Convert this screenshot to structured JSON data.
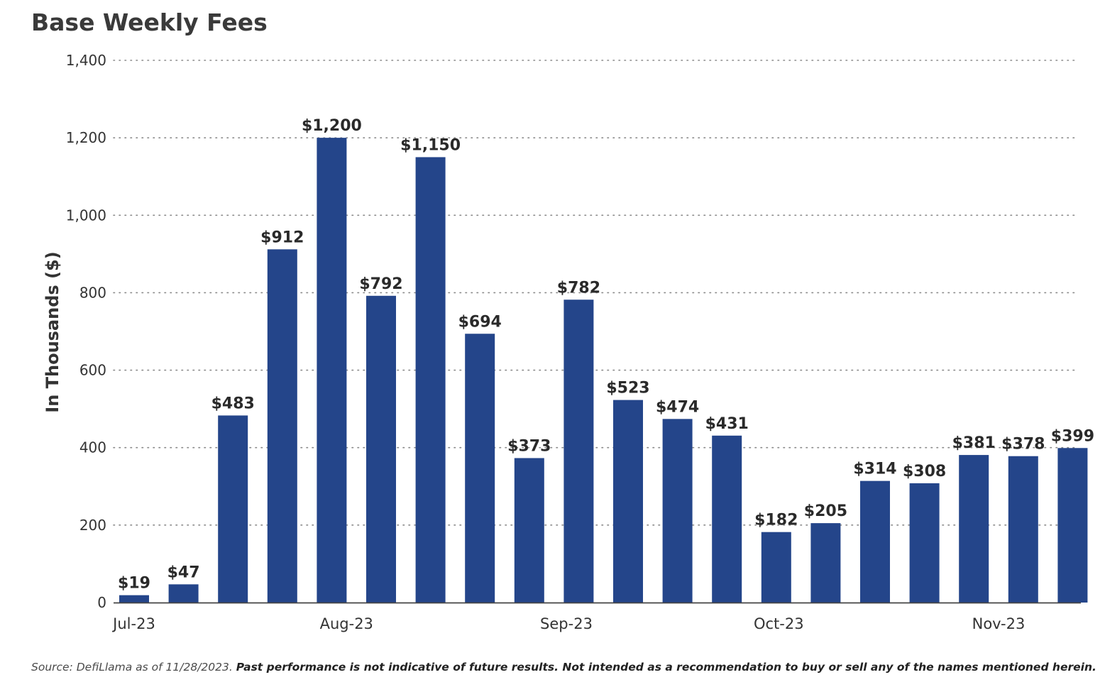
{
  "title": "Base Weekly Fees",
  "footer": {
    "source": "Source: DefiLlama as of 11/28/2023.",
    "disclaimer": "Past performance is not indicative of future results. Not intended as a recommendation to buy or sell any of the names mentioned herein."
  },
  "colors": {
    "bar": "#24458a",
    "grid": "#8a8a8a",
    "axis": "#444444",
    "text": "#333333"
  },
  "chart_data": {
    "type": "bar",
    "title": "Base Weekly Fees",
    "xlabel": "",
    "ylabel": "In Thousands ($)",
    "ylim": [
      0,
      1400
    ],
    "yticks": [
      0,
      200,
      400,
      600,
      800,
      1000,
      1200,
      1400
    ],
    "ytick_labels": [
      "0",
      "200",
      "400",
      "600",
      "800",
      "1,000",
      "1,200",
      "1,400"
    ],
    "xtick_labels": [
      {
        "label": "Jul-23",
        "bar_index": 0
      },
      {
        "label": "Aug-23",
        "bar_index": 4.3
      },
      {
        "label": "Sep-23",
        "bar_index": 8.75
      },
      {
        "label": "Oct-23",
        "bar_index": 13.05
      },
      {
        "label": "Nov-23",
        "bar_index": 17.5
      }
    ],
    "grid": true,
    "grid_style": "dotted",
    "values": [
      19,
      47,
      483,
      912,
      1200,
      792,
      1150,
      694,
      373,
      782,
      523,
      474,
      431,
      182,
      205,
      314,
      308,
      381,
      378,
      399
    ],
    "data_labels": [
      "$19",
      "$47",
      "$483",
      "$912",
      "$1,200",
      "$792",
      "$1,150",
      "$694",
      "$373",
      "$782",
      "$523",
      "$474",
      "$431",
      "$182",
      "$205",
      "$314",
      "$308",
      "$381",
      "$378",
      "$399"
    ]
  }
}
